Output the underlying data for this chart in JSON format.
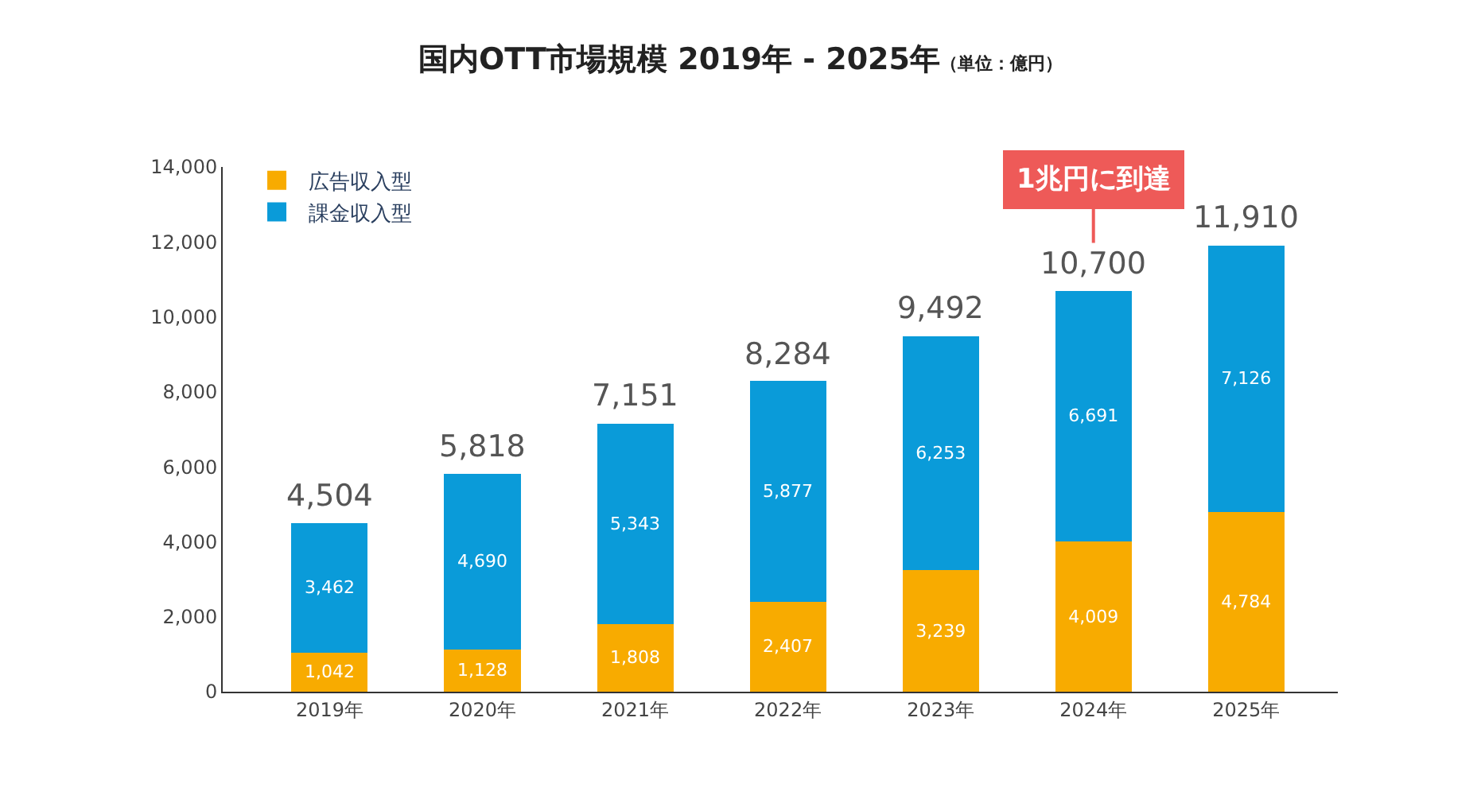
{
  "chart_data": {
    "type": "bar",
    "title": "国内OTT市場規模 2019年 - 2025年",
    "subtitle": "（単位：億円）",
    "categories": [
      "2019年",
      "2020年",
      "2021年",
      "2022年",
      "2023年",
      "2024年",
      "2025年"
    ],
    "stacked": true,
    "series": [
      {
        "name": "広告収入型",
        "color": "#f8ab00",
        "values": [
          1042,
          1128,
          1808,
          2407,
          3239,
          4009,
          4784
        ],
        "value_labels": [
          "1,042",
          "1,128",
          "1,808",
          "2,407",
          "3,239",
          "4,009",
          "4,784"
        ]
      },
      {
        "name": "課金収入型",
        "color": "#0a9bd9",
        "values": [
          3462,
          4690,
          5343,
          5877,
          6253,
          6691,
          7126
        ],
        "value_labels": [
          "3,462",
          "4,690",
          "5,343",
          "5,877",
          "6,253",
          "6,691",
          "7,126"
        ]
      }
    ],
    "totals": [
      "4,504",
      "5,818",
      "7,151",
      "8,284",
      "9,492",
      "10,700",
      "11,910"
    ],
    "ylim": [
      0,
      14000
    ],
    "yticks": [
      {
        "value": 0,
        "label": "0"
      },
      {
        "value": 2000,
        "label": "2,000"
      },
      {
        "value": 4000,
        "label": "4,000"
      },
      {
        "value": 6000,
        "label": "6,000"
      },
      {
        "value": 8000,
        "label": "8,000"
      },
      {
        "value": 10000,
        "label": "10,000"
      },
      {
        "value": 12000,
        "label": "12,000"
      },
      {
        "value": 14000,
        "label": "14,000"
      }
    ],
    "legend": "top left",
    "annotations": [
      {
        "text": "1兆円に到達",
        "x": "2024年",
        "y": 10700
      }
    ]
  }
}
